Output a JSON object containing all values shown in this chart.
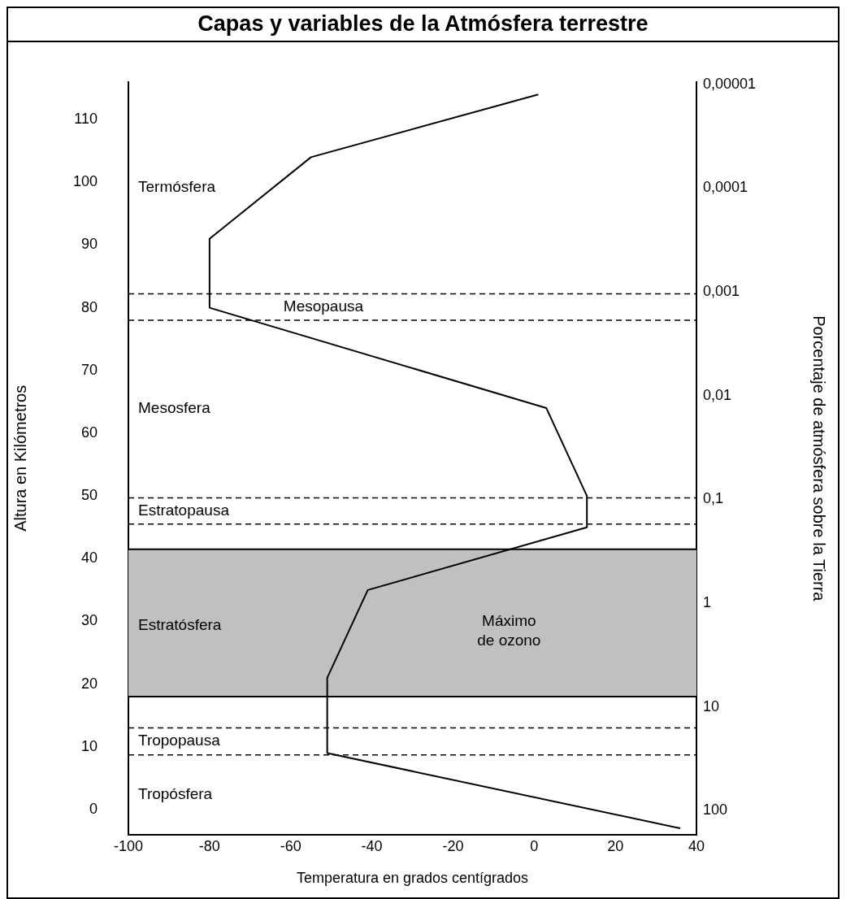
{
  "chart_data": {
    "type": "line",
    "title": "Capas y variables de la Atmósfera terrestre",
    "xlabel": "Temperatura en grados centígrados",
    "ylabel": "Altura en Kilómetros",
    "y2label": "Porcentaje de atmósfera sobre la Tierra",
    "x": [
      1,
      -55,
      -80,
      -80,
      3,
      13,
      13,
      -41,
      -51,
      -51,
      36
    ],
    "series": [
      {
        "color": "#000000",
        "values": [
          114,
          104,
          91,
          80,
          64,
          50,
          45,
          35,
          21,
          9,
          -3
        ]
      }
    ],
    "xlim": [
      -100,
      40
    ],
    "xticks": [
      -100,
      -80,
      -60,
      -40,
      -20,
      0,
      20,
      40
    ],
    "ylim": [
      -4,
      116
    ],
    "yticks": [
      0,
      10,
      20,
      30,
      40,
      50,
      60,
      70,
      80,
      90,
      100,
      110
    ],
    "log": "y2",
    "y2lim": [
      170,
      9.5e-06
    ],
    "y2ticks": [
      {
        "value": 1e-05,
        "label": "0,00001"
      },
      {
        "value": 0.0001,
        "label": "0,0001"
      },
      {
        "value": 0.001,
        "label": "0,001"
      },
      {
        "value": 0.01,
        "label": "0,01"
      },
      {
        "value": 0.1,
        "label": "0,1"
      },
      1,
      10,
      100
    ],
    "bands": [
      {
        "axis": "y",
        "from": 18,
        "to": 41.5,
        "label": "Máximo de ozono",
        "color": "#c0c0c0"
      }
    ],
    "ref_lines": [
      {
        "axis": "y",
        "value": 82.2,
        "label": "Mesopausa",
        "line_style": "dashed"
      },
      {
        "axis": "y",
        "value": 78,
        "line_style": "dashed"
      },
      {
        "axis": "y",
        "value": 49.7,
        "label": "Estratopausa",
        "line_style": "dashed"
      },
      {
        "axis": "y",
        "value": 45.5,
        "line_style": "dashed"
      },
      {
        "axis": "y",
        "value": 41.5,
        "line_style": "solid"
      },
      {
        "axis": "y",
        "value": 18,
        "line_style": "solid"
      },
      {
        "axis": "y",
        "value": 13,
        "label": "Tropopausa",
        "line_style": "dashed"
      },
      {
        "axis": "y",
        "value": 8.7,
        "line_style": "dashed"
      }
    ],
    "annotations": [
      "Termósfera",
      "Mesosfera",
      "Estratósfera",
      "Tropósfera"
    ],
    "grid": false,
    "legend": false,
    "marker": "none",
    "line_style": "solid"
  }
}
